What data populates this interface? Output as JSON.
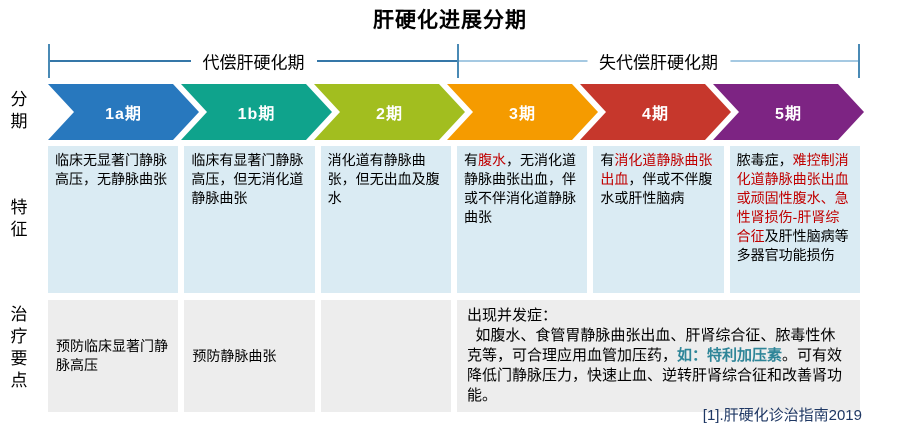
{
  "title": "肝硬化进展分期",
  "colors": {
    "red": "#C00000",
    "teal": "#2E8598",
    "cellblue": "#DAEBF3",
    "cellgray": "#EDEDED",
    "tick": "#4A8AB5",
    "lineleft": "#3577A8",
    "lineright": "#A5C9E2",
    "footnote": "#1F3864"
  },
  "phases": [
    {
      "label": "代偿肝硬化期"
    },
    {
      "label": "失代偿肝硬化期"
    }
  ],
  "rows": {
    "staging": "分期",
    "features": "特征",
    "treatment": "治疗要点"
  },
  "stages": [
    {
      "label": "1a期",
      "color": "#2878BE"
    },
    {
      "label": "1b期",
      "color": "#0FA38C"
    },
    {
      "label": "2期",
      "color": "#A2BE1F"
    },
    {
      "label": "3期",
      "color": "#F59B00"
    },
    {
      "label": "4期",
      "color": "#C6372C"
    },
    {
      "label": "5期",
      "color": "#7D2483"
    }
  ],
  "features": [
    {
      "segments": [
        {
          "text": "临床无显著门静脉高压，无静脉曲张"
        }
      ]
    },
    {
      "segments": [
        {
          "text": "临床有显著门静脉高压，但无消化道静脉曲张"
        }
      ]
    },
    {
      "segments": [
        {
          "text": "消化道有静脉曲张，但无出血及腹水"
        }
      ]
    },
    {
      "segments": [
        {
          "text": "有"
        },
        {
          "text": "腹水",
          "color": "red"
        },
        {
          "text": "，无消化道静脉曲张出血，伴或不伴消化道静脉曲张"
        }
      ]
    },
    {
      "segments": [
        {
          "text": "有"
        },
        {
          "text": "消化道静脉曲张出血",
          "color": "red"
        },
        {
          "text": "，伴或不伴腹水或肝性脑病"
        }
      ]
    },
    {
      "segments": [
        {
          "text": "脓毒症，"
        },
        {
          "text": "难控制消化道静脉曲张出血或顽固性腹水、急性肾损伤-肝肾综合征",
          "color": "red"
        },
        {
          "text": "及肝性脑病等多器官功能损伤"
        }
      ]
    }
  ],
  "treatment": {
    "cells": [
      {
        "segments": [
          {
            "text": "预防临床显著门静脉高压"
          }
        ]
      },
      {
        "segments": [
          {
            "text": "预防静脉曲张"
          }
        ]
      },
      {
        "segments": []
      }
    ],
    "merged": {
      "segments": [
        {
          "text": "出现并发症：\n  如腹水、食管胃静脉曲张出血、肝肾综合征、脓毒性休克等，可合理应用血管加压药，"
        },
        {
          "text": "如：特利加压素",
          "color": "teal",
          "bold": true
        },
        {
          "text": "。可有效降低门静脉压力，快速止血、逆转肝肾综合征和改善肾功能。"
        }
      ]
    }
  },
  "footnote": "[1].肝硬化诊治指南2019"
}
